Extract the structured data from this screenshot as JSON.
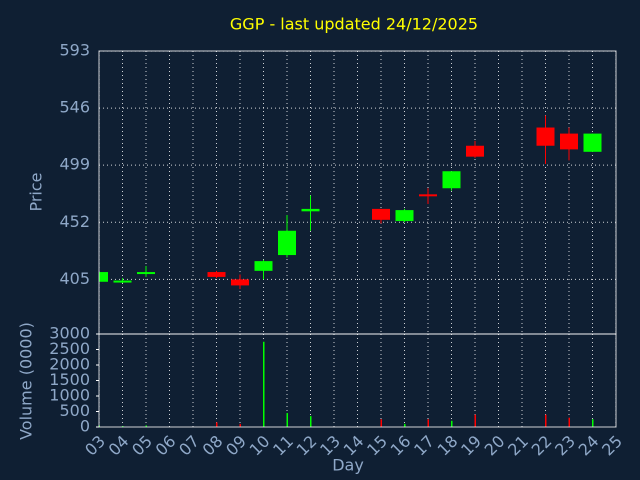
{
  "chart_data": {
    "type": "candlestick",
    "title": "GGP - last updated 24/12/2025",
    "xlabel": "Day",
    "ylabel": "Price",
    "y2label": "Volume (0000)",
    "xticks": [
      "03",
      "04",
      "05",
      "06",
      "07",
      "08",
      "09",
      "10",
      "11",
      "12",
      "13",
      "14",
      "15",
      "16",
      "17",
      "18",
      "19",
      "20",
      "21",
      "22",
      "23",
      "24",
      "25"
    ],
    "x": [
      "03",
      "04",
      "05",
      "08",
      "09",
      "10",
      "11",
      "12",
      "15",
      "16",
      "17",
      "18",
      "19",
      "22",
      "23",
      "24"
    ],
    "open": [
      403,
      403,
      410,
      411,
      405,
      412,
      425,
      461,
      463,
      453,
      475,
      480,
      515,
      530,
      525,
      510
    ],
    "high": [
      411,
      406,
      416,
      412,
      409,
      421,
      458,
      474,
      463,
      463,
      480,
      494,
      519,
      540,
      530,
      525
    ],
    "low": [
      403,
      402,
      407,
      406,
      397,
      405,
      423,
      445,
      451,
      452,
      467,
      478,
      505,
      500,
      503,
      510
    ],
    "close": [
      411,
      404,
      411,
      407,
      400,
      420,
      445,
      463,
      454,
      462,
      474,
      494,
      506,
      515,
      512,
      525
    ],
    "volume": [
      50,
      30,
      50,
      150,
      100,
      2750,
      450,
      350,
      250,
      100,
      250,
      200,
      400,
      400,
      300,
      250
    ],
    "up_color": "#00ff00",
    "down_color": "#ff0000",
    "ylim": [
      360,
      593
    ],
    "yticks": [
      405,
      452,
      499,
      546,
      593
    ],
    "y2lim": [
      0,
      3000
    ],
    "y2ticks": [
      0,
      500,
      1000,
      1500,
      2000,
      2500,
      3000
    ],
    "grid": true
  }
}
